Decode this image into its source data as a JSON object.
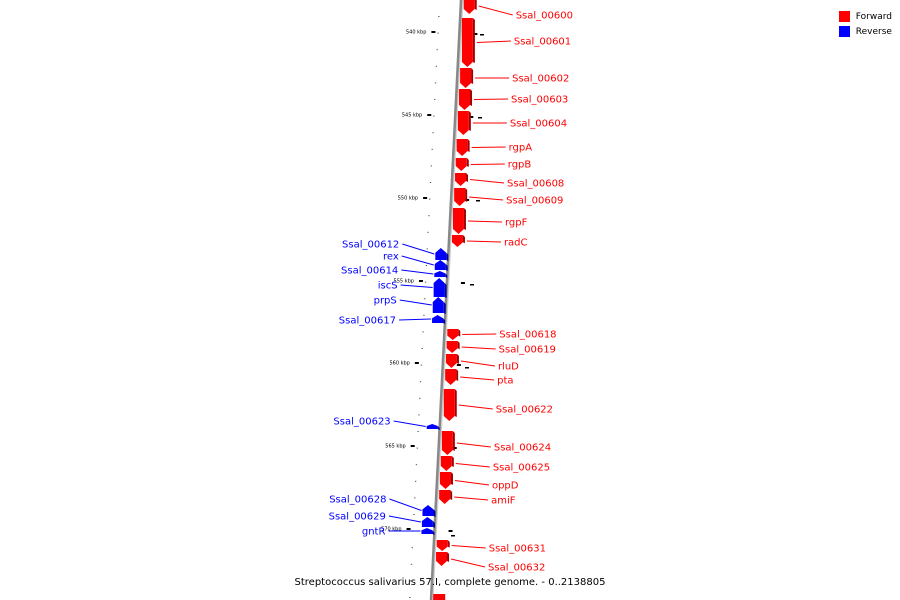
{
  "caption": "Streptococcus salivarius 57.I, complete genome. - 0..2138805",
  "legend": {
    "items": [
      {
        "label": "Forward",
        "color": "#ff0000"
      },
      {
        "label": "Reverse",
        "color": "#0000ff"
      }
    ]
  },
  "colors": {
    "forward": "#ff0000",
    "reverse": "#0000ff",
    "backbone": "#888888"
  },
  "ticks": [
    "540 kbp",
    "545 kbp",
    "550 kbp",
    "555 kbp",
    "560 kbp",
    "565 kbp",
    "570 kbp"
  ],
  "genes": [
    {
      "label": "Ssal_00600",
      "strand": "forward"
    },
    {
      "label": "Ssal_00601",
      "strand": "forward"
    },
    {
      "label": "Ssal_00602",
      "strand": "forward"
    },
    {
      "label": "Ssal_00603",
      "strand": "forward"
    },
    {
      "label": "Ssal_00604",
      "strand": "forward"
    },
    {
      "label": "rgpA",
      "strand": "forward"
    },
    {
      "label": "rgpB",
      "strand": "forward"
    },
    {
      "label": "Ssal_00608",
      "strand": "forward"
    },
    {
      "label": "Ssal_00609",
      "strand": "forward"
    },
    {
      "label": "rgpF",
      "strand": "forward"
    },
    {
      "label": "radC",
      "strand": "forward"
    },
    {
      "label": "Ssal_00612",
      "strand": "reverse"
    },
    {
      "label": "rex",
      "strand": "reverse"
    },
    {
      "label": "Ssal_00614",
      "strand": "reverse"
    },
    {
      "label": "iscS",
      "strand": "reverse"
    },
    {
      "label": "prpS",
      "strand": "reverse"
    },
    {
      "label": "Ssal_00617",
      "strand": "reverse"
    },
    {
      "label": "Ssal_00618",
      "strand": "forward"
    },
    {
      "label": "Ssal_00619",
      "strand": "forward"
    },
    {
      "label": "rluD",
      "strand": "forward"
    },
    {
      "label": "pta",
      "strand": "forward"
    },
    {
      "label": "Ssal_00622",
      "strand": "forward"
    },
    {
      "label": "Ssal_00623",
      "strand": "reverse"
    },
    {
      "label": "Ssal_00624",
      "strand": "forward"
    },
    {
      "label": "Ssal_00625",
      "strand": "forward"
    },
    {
      "label": "oppD",
      "strand": "forward"
    },
    {
      "label": "amiF",
      "strand": "forward"
    },
    {
      "label": "Ssal_00628",
      "strand": "reverse"
    },
    {
      "label": "Ssal_00629",
      "strand": "reverse"
    },
    {
      "label": "gntR",
      "strand": "reverse"
    },
    {
      "label": "Ssal_00631",
      "strand": "forward"
    },
    {
      "label": "Ssal_00632",
      "strand": "forward"
    }
  ]
}
